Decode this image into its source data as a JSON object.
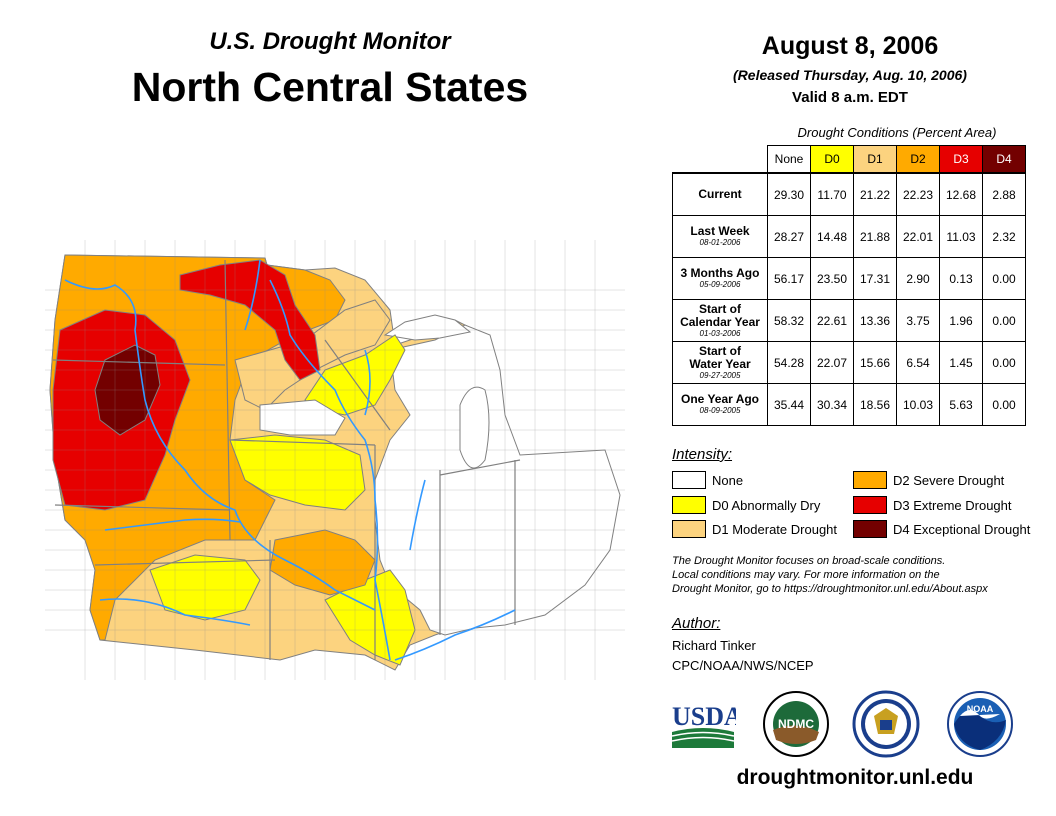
{
  "header": {
    "subtitle": "U.S. Drought Monitor",
    "title": "North Central States",
    "date": "August 8, 2006",
    "released": "(Released Thursday, Aug. 10, 2006)",
    "valid": "Valid 8 a.m. EDT"
  },
  "table": {
    "caption": "Drought Conditions (Percent Area)",
    "columns": [
      "None",
      "D0",
      "D1",
      "D2",
      "D3",
      "D4"
    ],
    "column_colors": [
      "#ffffff",
      "#ffff00",
      "#fcd37f",
      "#ffaa00",
      "#e60000",
      "#730000"
    ],
    "rows": [
      {
        "label": "Current",
        "label2": "",
        "date": "",
        "values": [
          "29.30",
          "11.70",
          "21.22",
          "22.23",
          "12.68",
          "2.88"
        ]
      },
      {
        "label": "Last Week",
        "label2": "",
        "date": "08-01-2006",
        "values": [
          "28.27",
          "14.48",
          "21.88",
          "22.01",
          "11.03",
          "2.32"
        ]
      },
      {
        "label": "3 Months Ago",
        "label2": "",
        "date": "05-09-2006",
        "values": [
          "56.17",
          "23.50",
          "17.31",
          "2.90",
          "0.13",
          "0.00"
        ]
      },
      {
        "label": "Start of",
        "label2": "Calendar Year",
        "date": "01-03-2006",
        "values": [
          "58.32",
          "22.61",
          "13.36",
          "3.75",
          "1.96",
          "0.00"
        ]
      },
      {
        "label": "Start of",
        "label2": "Water Year",
        "date": "09-27-2005",
        "values": [
          "54.28",
          "22.07",
          "15.66",
          "6.54",
          "1.45",
          "0.00"
        ]
      },
      {
        "label": "One Year Ago",
        "label2": "",
        "date": "08-09-2005",
        "values": [
          "35.44",
          "30.34",
          "18.56",
          "10.03",
          "5.63",
          "0.00"
        ]
      }
    ]
  },
  "legend": {
    "title": "Intensity:",
    "items": [
      {
        "label": "None",
        "color": "#ffffff"
      },
      {
        "label": "D0 Abnormally Dry",
        "color": "#ffff00"
      },
      {
        "label": "D1 Moderate Drought",
        "color": "#fcd37f"
      },
      {
        "label": "D2 Severe Drought",
        "color": "#ffaa00"
      },
      {
        "label": "D3 Extreme Drought",
        "color": "#e60000"
      },
      {
        "label": "D4 Exceptional Drought",
        "color": "#730000"
      }
    ]
  },
  "note": {
    "line1": "The Drought Monitor focuses on broad-scale conditions.",
    "line2": "Local conditions may vary. For more information on the",
    "line3": "Drought Monitor, go to https://droughtmonitor.unl.edu/About.aspx"
  },
  "author": {
    "title": "Author:",
    "name": "Richard Tinker",
    "org": "CPC/NOAA/NWS/NCEP"
  },
  "logos": {
    "usda": "USDA",
    "ndmc": "NDMC",
    "noaa": "NOAA"
  },
  "footer": {
    "url": "droughtmonitor.unl.edu"
  },
  "map_colors": {
    "water": "#3399ff"
  }
}
